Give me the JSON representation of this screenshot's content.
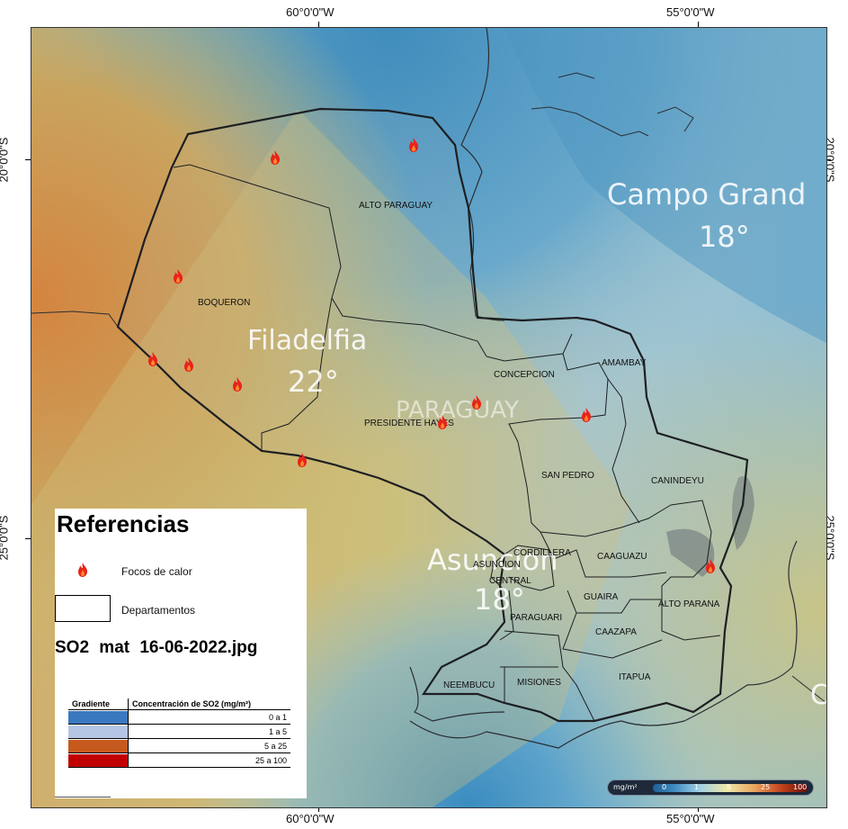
{
  "coords": {
    "top_left": "60°0'0\"W",
    "top_right": "55°0'0\"W",
    "bottom_left": "60°0'0\"W",
    "bottom_right": "55°0'0\"W",
    "left_top": "20°0'0\"S",
    "left_bottom": "25°0'0\"S",
    "right_top": "20°0'0\"S",
    "right_bottom": "25°0'0\"S"
  },
  "weather_overlay": {
    "campo_grande_name": "Campo Grand",
    "campo_grande_temp": "18°",
    "filadelfia_name": "Filadelfia",
    "filadelfia_temp": "22°",
    "country_name": "PARAGUAY",
    "asuncion_name": "Asuncion",
    "asuncion_temp": "18°",
    "edge_fragment": "C"
  },
  "departments": {
    "alto_paraguay": "ALTO PARAGUAY",
    "boqueron": "BOQUERON",
    "concepcion": "CONCEPCION",
    "amambay": "AMAMBAY",
    "presidente_hayes": "PRESIDENTE HAYES",
    "san_pedro": "SAN PEDRO",
    "canindeyu": "CANINDEYU",
    "cordillera": "CORDILLERA",
    "asuncion": "ASUNCION",
    "central": "CENTRAL",
    "caaguazu": "CAAGUAZU",
    "guaira": "GUAIRA",
    "alto_parana": "ALTO PARANA",
    "paraguari": "PARAGUARI",
    "caazapa": "CAAZAPA",
    "neembucu": "NEEMBUCU",
    "misiones": "MISIONES",
    "itapua": "ITAPUA"
  },
  "fire_icon": "fire-icon",
  "legend": {
    "title": "Referencias",
    "fire_label": "Focos de calor",
    "dept_label": "Departamentos",
    "file_name": "SO2  mat  16-06-2022.jpg",
    "table_header_gradient": "Gradiente",
    "table_header_concentration": "Concentración de SO2 (mg/m²)",
    "rows": [
      {
        "color": "#3a78c0",
        "range": "0 a 1"
      },
      {
        "color": "#b5c6e4",
        "range": "1 a 5"
      },
      {
        "color": "#c65a1e",
        "range": "5 a 25"
      },
      {
        "color": "#c00000",
        "range": "25 a 100"
      }
    ]
  },
  "scale": {
    "unit": "mg/m²",
    "ticks": [
      "0",
      "1",
      "5",
      "25",
      "100"
    ]
  }
}
